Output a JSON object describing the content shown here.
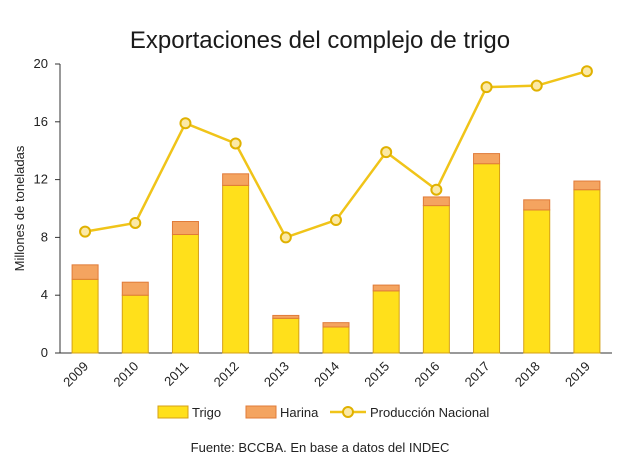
{
  "chart_data": {
    "type": "bar",
    "title": "Exportaciones del complejo de trigo",
    "ylabel": "Millones de toneladas",
    "xlabel": "",
    "ylim": [
      0,
      20
    ],
    "yticks": [
      "0",
      "4",
      "8",
      "12",
      "16",
      "20"
    ],
    "grid": false,
    "legend_position": "bottom",
    "categories": [
      "2009",
      "2010",
      "2011",
      "2012",
      "2013",
      "2014",
      "2015",
      "2016",
      "2017",
      "2018",
      "2019"
    ],
    "series": [
      {
        "name": "Trigo",
        "type": "stacked-bar",
        "color": "#FFE01B",
        "values": [
          5.1,
          4.0,
          8.2,
          11.6,
          2.4,
          1.8,
          4.3,
          10.2,
          13.1,
          9.9,
          11.3
        ]
      },
      {
        "name": "Harina",
        "type": "stacked-bar",
        "color": "#F4A460",
        "values": [
          1.0,
          0.9,
          0.9,
          0.8,
          0.2,
          0.3,
          0.4,
          0.6,
          0.7,
          0.7,
          0.6
        ]
      },
      {
        "name": "Producción Nacional",
        "type": "line",
        "color": "#F0C419",
        "values": [
          8.4,
          9.0,
          15.9,
          14.5,
          8.0,
          9.2,
          13.9,
          11.3,
          18.4,
          18.5,
          19.5
        ]
      }
    ]
  },
  "source": "Fuente: BCCBA. En base a datos del INDEC"
}
